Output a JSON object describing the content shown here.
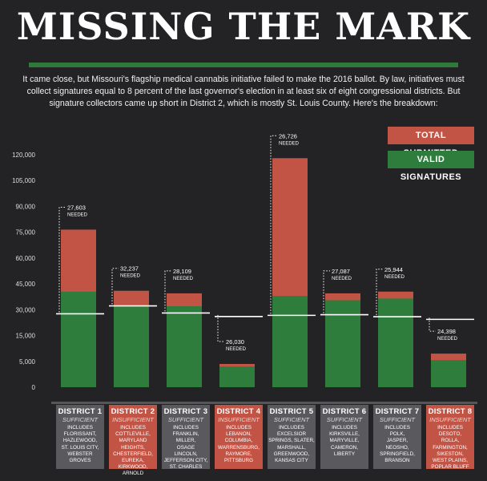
{
  "title": "MISSING THE MARK",
  "intro": "It came close, but Missouri's flagship medical cannabis initiative failed to make the 2016 ballot. By law, initiatives must collect signatures equal to 8 percent of the last governor's election in at least six of eight congressional districts. But signature collectors came up short in District 2, which is mostly St. Louis County. Here's the breakdown:",
  "colors": {
    "total": "#c25446",
    "valid": "#2e7d3c",
    "sufficient_box": "#5a5a5e",
    "insufficient_box": "#c25446",
    "accent_rule": "#2f7a3b"
  },
  "chart_data": {
    "type": "bar",
    "ylim": [
      0,
      120000
    ],
    "ytick_labels": [
      "0",
      "5,000",
      "15,000",
      "30,000",
      "45,000",
      "60,000",
      "75,000",
      "90,000",
      "105,000",
      "120,000"
    ],
    "ytick_values": [
      0,
      5000,
      15000,
      30000,
      45000,
      60000,
      75000,
      90000,
      105000,
      120000
    ],
    "legend": [
      {
        "label": "TOTAL SUBMITTED",
        "color": "#c25446"
      },
      {
        "label": "VALID SIGNATURES",
        "color": "#2e7d3c"
      }
    ],
    "needed_label": "NEEDED",
    "categories": [
      "DISTRICT 1",
      "DISTRICT 2",
      "DISTRICT 3",
      "DISTRICT 4",
      "DISTRICT 5",
      "DISTRICT 6",
      "DISTRICT 7",
      "DISTRICT 8"
    ],
    "series": [
      {
        "name": "TOTAL SUBMITTED",
        "values": [
          76500,
          41000,
          39500,
          4500,
          118000,
          39500,
          40500,
          8000
        ]
      },
      {
        "name": "VALID SIGNATURES",
        "values": [
          40500,
          32300,
          32000,
          4000,
          38000,
          35500,
          36500,
          5500
        ]
      }
    ],
    "needed": [
      27603,
      32237,
      28109,
      26030,
      26726,
      27087,
      25944,
      24398
    ],
    "needed_labels": [
      "27,603",
      "32,237",
      "28,109",
      "26,030",
      "26,726",
      "27,087",
      "25,944",
      "24,398"
    ]
  },
  "districts": [
    {
      "name": "DISTRICT 1",
      "status": "SUFFICIENT",
      "includes": [
        "INCLUDES",
        "FLORISSANT,",
        "HAZLEWOOD,",
        "ST. LOUIS CITY,",
        "WEBSTER GROVES"
      ]
    },
    {
      "name": "DISTRICT 2",
      "status": "INSUFFICIENT",
      "includes": [
        "INCLUDES",
        "COTTLEVILLE,",
        "MARYLAND HEIGHTS,",
        "CHESTERFIELD,",
        "EUREKA,",
        "KIRKWOOD,",
        "ARNOLD"
      ]
    },
    {
      "name": "DISTRICT 3",
      "status": "SUFFICIENT",
      "includes": [
        "INCLUDES",
        "FRANKLIN,",
        "MILLER,",
        "OSAGE",
        "LINCOLN,",
        "JEFFERSON CITY,",
        "ST. CHARLES"
      ]
    },
    {
      "name": "DISTRICT 4",
      "status": "INSUFFICIENT",
      "includes": [
        "INCLUDES",
        "LEBANON,",
        "COLUMBIA,",
        "WARRENSBURG,",
        "RAYMORE,",
        "PITTSBURG"
      ]
    },
    {
      "name": "DISTRICT 5",
      "status": "SUFFICIENT",
      "includes": [
        "INCLUDES",
        "EXCELSIOR",
        "SPRINGS, SLATER,",
        "MARSHALL,",
        "GREENWOOD,",
        "KANSAS CITY"
      ]
    },
    {
      "name": "DISTRICT 6",
      "status": "SUFFICIENT",
      "includes": [
        "INCLUDES",
        "KIRKSVILLE,",
        "MARYVILLE,",
        "CAMERON,",
        "LIBERTY"
      ]
    },
    {
      "name": "DISTRICT 7",
      "status": "SUFFICIENT",
      "includes": [
        "INCLUDES",
        "POLK,",
        "JASPER,",
        "NEOSHO,",
        "SPRINGFIELD,",
        "BRANSON"
      ]
    },
    {
      "name": "DISTRICT 8",
      "status": "INSUFFICIENT",
      "includes": [
        "INCLUDES",
        "DESOTO,",
        "ROLLA,",
        "FARMINGTON,",
        "SIKESTON,",
        "WEST PLAINS,",
        "POPLAR BLUFF"
      ]
    }
  ]
}
